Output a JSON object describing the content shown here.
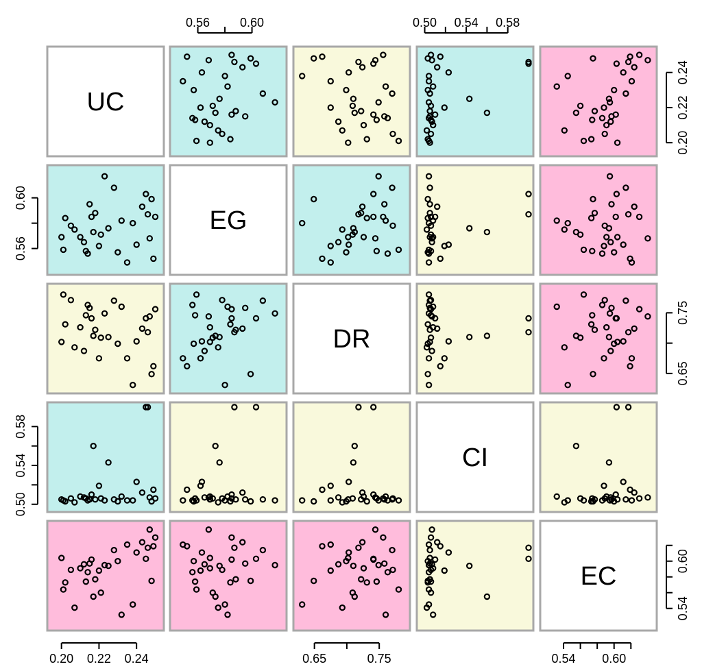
{
  "chart_data": {
    "type": "scatter",
    "title": "",
    "variables": [
      "UC",
      "EG",
      "DR",
      "CI",
      "EC"
    ],
    "ranges": {
      "UC": [
        0.195,
        0.252
      ],
      "EG": [
        0.543,
        0.622
      ],
      "DR": [
        0.625,
        0.79
      ],
      "CI": [
        0.497,
        0.6
      ],
      "EC": [
        0.518,
        0.645
      ]
    },
    "ticks": {
      "UC": [
        0.2,
        0.22,
        0.24
      ],
      "EG": [
        0.56,
        0.58,
        0.6
      ],
      "DR": [
        0.65,
        0.7,
        0.75
      ],
      "CI": [
        0.5,
        0.52,
        0.54,
        0.56,
        0.58
      ],
      "EC": [
        0.54,
        0.56,
        0.58,
        0.6,
        0.62
      ]
    },
    "tick_labels": {
      "top": {
        "EG": [
          "0.56",
          "0.60"
        ],
        "CI": [
          "0.50",
          "0.54",
          "0.58"
        ]
      },
      "bottom": {
        "UC": [
          "0.20",
          "0.22",
          "0.24"
        ],
        "DR": [
          "0.65",
          "0.75"
        ],
        "EC": [
          "0.54",
          "0.60"
        ]
      },
      "left": {
        "EG": [
          "0.56",
          "0.60"
        ],
        "CI": [
          "0.50",
          "0.54",
          "0.58"
        ]
      },
      "right": {
        "UC": [
          "0.20",
          "0.22",
          "0.24"
        ],
        "DR": [
          "0.65",
          "0.75"
        ],
        "EC": [
          "0.54",
          "0.60"
        ]
      }
    },
    "panel_colors": {
      "UC-EG": "#c2efed",
      "UC-DR": "#f9f9dc",
      "UC-CI": "#c2efed",
      "UC-EC": "#ffbcdc",
      "EG-DR": "#c2efed",
      "EG-CI": "#f9f9dc",
      "EG-EC": "#ffbcdc",
      "DR-CI": "#f9f9dc",
      "DR-EC": "#ffbcdc",
      "CI-EC": "#f9f9dc"
    },
    "diagonal_color": "#ffffff",
    "observations": {
      "UC": [
        0.2,
        0.201,
        0.202,
        0.205,
        0.207,
        0.21,
        0.212,
        0.213,
        0.214,
        0.215,
        0.216,
        0.217,
        0.218,
        0.22,
        0.221,
        0.223,
        0.225,
        0.228,
        0.23,
        0.232,
        0.235,
        0.238,
        0.24,
        0.243,
        0.245,
        0.246,
        0.247,
        0.248,
        0.249,
        0.25
      ],
      "EG": [
        0.569,
        0.559,
        0.584,
        0.578,
        0.575,
        0.569,
        0.565,
        0.558,
        0.556,
        0.595,
        0.585,
        0.573,
        0.588,
        0.562,
        0.571,
        0.617,
        0.576,
        0.608,
        0.557,
        0.582,
        0.549,
        0.58,
        0.563,
        0.593,
        0.603,
        0.587,
        0.568,
        0.599,
        0.552,
        0.585
      ],
      "DR": [
        0.702,
        0.78,
        0.731,
        0.771,
        0.693,
        0.726,
        0.687,
        0.746,
        0.763,
        0.758,
        0.741,
        0.712,
        0.722,
        0.675,
        0.709,
        0.749,
        0.71,
        0.77,
        0.699,
        0.76,
        0.675,
        0.631,
        0.703,
        0.724,
        0.741,
        0.718,
        0.744,
        0.649,
        0.662,
        0.756
      ],
      "CI": [
        0.505,
        0.504,
        0.503,
        0.506,
        0.502,
        0.508,
        0.507,
        0.506,
        0.504,
        0.505,
        0.51,
        0.56,
        0.505,
        0.519,
        0.506,
        0.504,
        0.543,
        0.505,
        0.503,
        0.508,
        0.504,
        0.504,
        0.523,
        0.512,
        0.6,
        0.6,
        0.507,
        0.503,
        0.515,
        0.506
      ],
      "EC": [
        0.604,
        0.564,
        0.573,
        0.589,
        0.541,
        0.591,
        0.596,
        0.574,
        0.586,
        0.597,
        0.602,
        0.555,
        0.577,
        0.588,
        0.56,
        0.595,
        0.594,
        0.614,
        0.6,
        0.532,
        0.621,
        0.545,
        0.611,
        0.624,
        0.603,
        0.617,
        0.64,
        0.575,
        0.619,
        0.63
      ]
    }
  }
}
